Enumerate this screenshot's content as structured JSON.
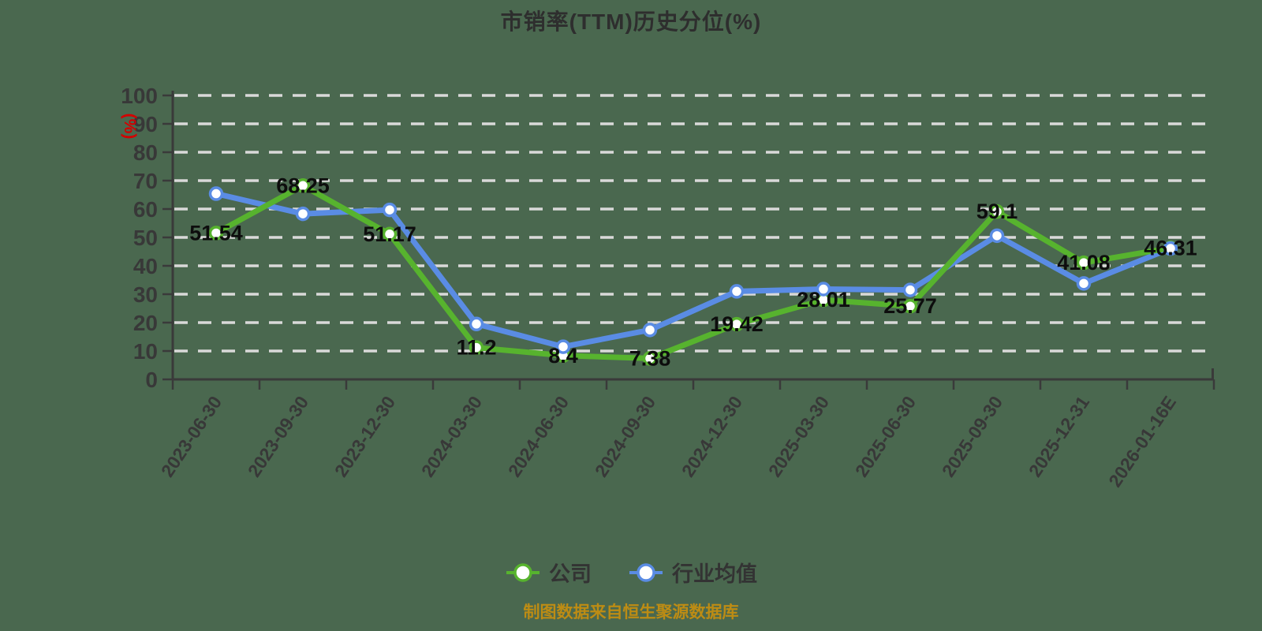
{
  "chart_data": {
    "type": "line",
    "title": "市销率(TTM)历史分位(%)",
    "xlabel": "",
    "ylabel": "(%)",
    "ylim": [
      0,
      100
    ],
    "y_interval": 10,
    "grid": true,
    "grid_style": "dashed",
    "legend_position": "bottom",
    "categories": [
      "2023-06-30",
      "2023-09-30",
      "2023-12-30",
      "2024-03-30",
      "2024-06-30",
      "2024-09-30",
      "2024-12-30",
      "2025-03-30",
      "2025-06-30",
      "2025-09-30",
      "2025-12-31",
      "2026-01-16E"
    ],
    "series": [
      {
        "name": "公司",
        "color": "#57b32e",
        "values": [
          51.54,
          68.25,
          51.17,
          11.2,
          8.4,
          7.38,
          19.42,
          28.01,
          25.77,
          59.1,
          41.08,
          46.31
        ],
        "point_labels": [
          "51.54",
          "68.25",
          "51.17",
          "11.2",
          "8.4",
          "7.38",
          "19.42",
          "28.01",
          "25.77",
          "59.1",
          "41.08",
          "46.31"
        ]
      },
      {
        "name": "行业均值",
        "color": "#5a8ce4",
        "values": [
          65.4,
          58.3,
          59.7,
          19.5,
          11.5,
          17.4,
          31.0,
          31.8,
          31.5,
          50.6,
          33.8,
          46.1
        ],
        "point_labels": []
      }
    ]
  },
  "y_axis": {
    "name": "(%)",
    "tick_labels": [
      "100",
      "90",
      "80",
      "70",
      "60",
      "50",
      "40",
      "30",
      "20",
      "10",
      "0"
    ]
  },
  "footer": {
    "source_note": "制图数据来自恒生聚源数据库"
  },
  "colors": {
    "background": "#4a684f",
    "grid": "#d9d9d9",
    "axis": "#3a3a3a",
    "tick_text": "#383838",
    "data_label": "#0d0d0d",
    "axis_name_red": "#d40000",
    "marker_fill": "#ffffff",
    "title_text": "#2e2e2e",
    "footer_gold": "#bd8c14"
  }
}
